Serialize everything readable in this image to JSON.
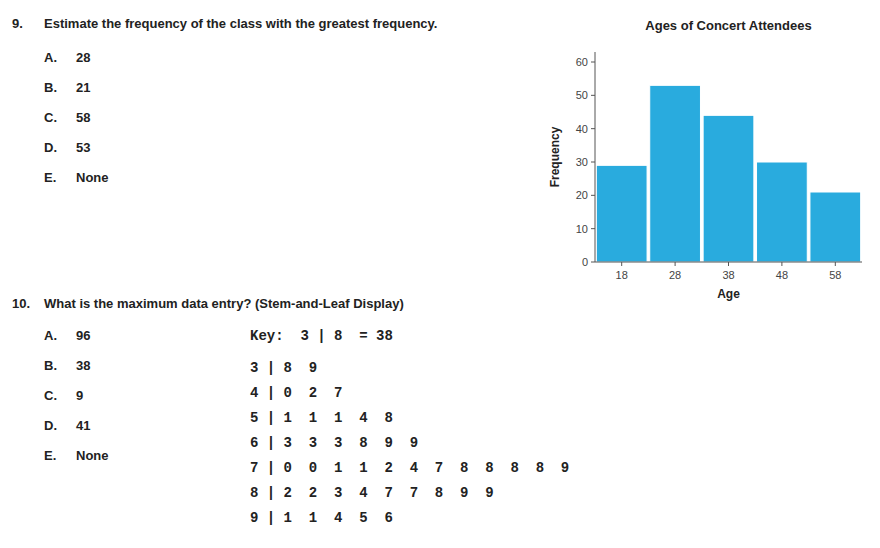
{
  "chart_data": {
    "type": "bar",
    "title": "Ages of Concert Attendees",
    "x_label": "Age",
    "y_label": "Frequency",
    "x": [
      18,
      28,
      38,
      48,
      58
    ],
    "values": [
      29,
      53,
      44,
      30,
      21
    ],
    "color": "#29ABDE",
    "xlim": [
      13,
      63
    ],
    "xticks": [
      18,
      28,
      38,
      48,
      58
    ],
    "ylim": [
      0,
      63
    ],
    "yticks": [
      0,
      10,
      20,
      30,
      40,
      50,
      60
    ],
    "grid": false
  },
  "questions": [
    {
      "number": "9.",
      "text": "Estimate the frequency of the class with the greatest frequency.",
      "options": [
        {
          "letter": "A.",
          "text": "28"
        },
        {
          "letter": "B.",
          "text": "21"
        },
        {
          "letter": "C.",
          "text": "58"
        },
        {
          "letter": "D.",
          "text": "53"
        },
        {
          "letter": "E.",
          "text": "None"
        }
      ]
    },
    {
      "number": "10.",
      "text": "What is the maximum data entry?  (Stem-and-Leaf Display)",
      "options": [
        {
          "letter": "A.",
          "text": "96"
        },
        {
          "letter": "B.",
          "text": "38"
        },
        {
          "letter": "C.",
          "text": "9"
        },
        {
          "letter": "D.",
          "text": "41"
        },
        {
          "letter": "E.",
          "text": "None"
        }
      ]
    }
  ],
  "stem_and_leaf": {
    "key": "Key:  3 | 8  = 38",
    "lines": [
      "3 | 8  9",
      "4 | 0  2  7",
      "5 | 1  1  1  4  8",
      "6 | 3  3  3  8  9  9",
      "7 | 0  0  1  1  2  4  7  8  8  8  8  9",
      "8 | 2  2  3  4  7  7  8  9  9",
      "9 | 1  1  4  5  6"
    ]
  }
}
